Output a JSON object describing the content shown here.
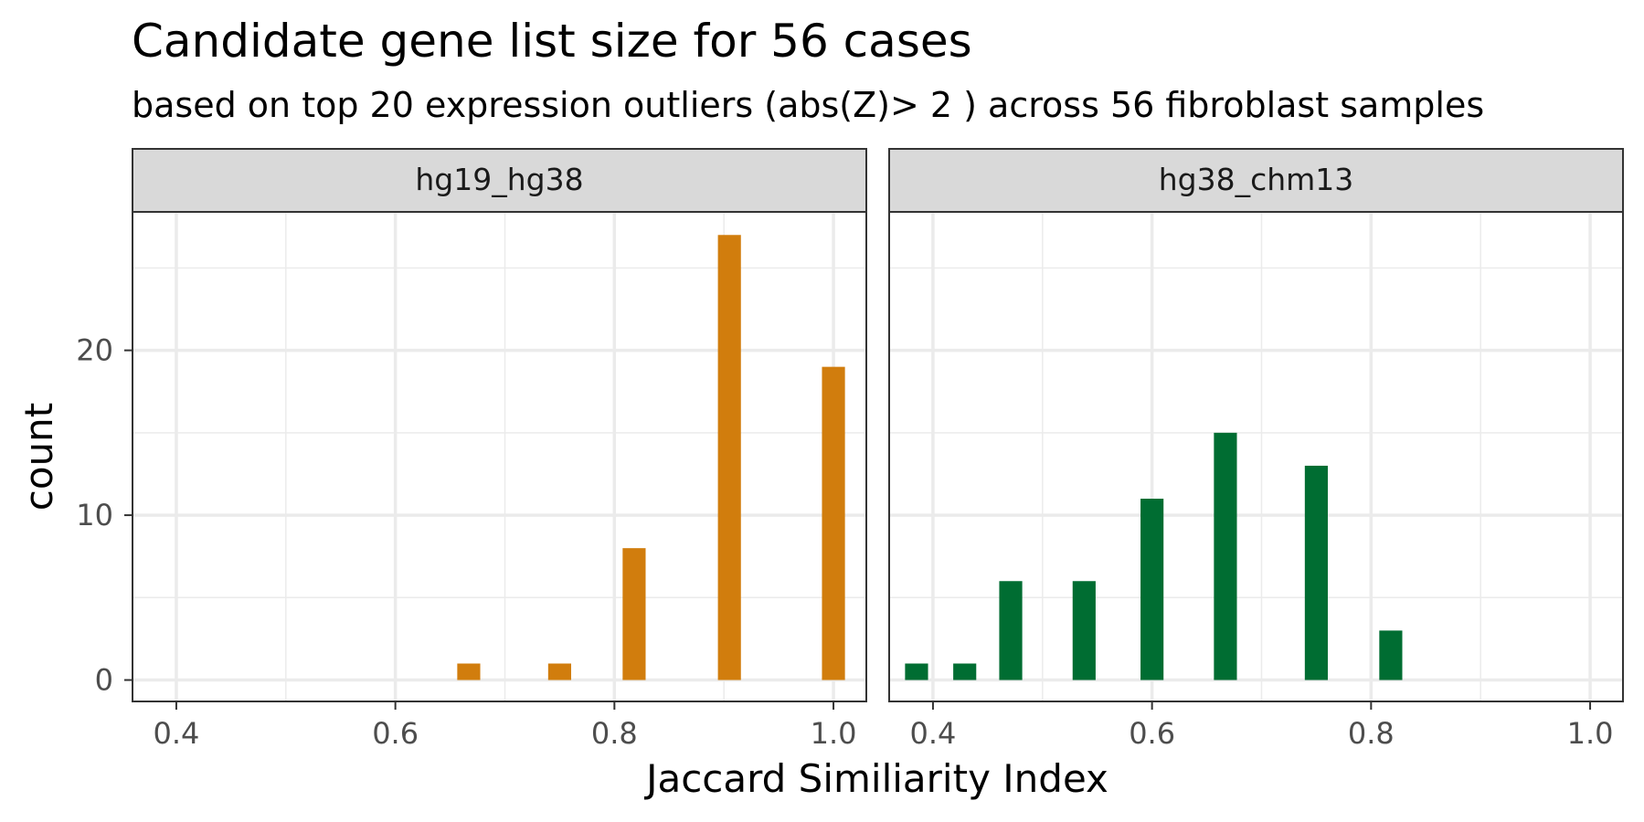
{
  "chart_data": {
    "type": "bar",
    "title": "Candidate gene list size for 56 cases",
    "subtitle": "based on top 20 expression outliers (abs(Z)> 2 ) across 56 fibroblast samples",
    "xlabel": "Jaccard Similiarity Index",
    "ylabel": "count",
    "xlim": [
      0.36,
      1.03
    ],
    "ylim": [
      -1.3,
      28.4
    ],
    "x_ticks": [
      0.4,
      0.6,
      0.8,
      1.0
    ],
    "x_tick_labels": [
      "0.4",
      "0.6",
      "0.8",
      "1.0"
    ],
    "y_ticks": [
      0,
      10,
      20
    ],
    "y_tick_labels": [
      "0",
      "10",
      "20"
    ],
    "bar_width": 0.021,
    "grid": true,
    "legend": "none",
    "facets": [
      {
        "name": "hg19_hg38",
        "color": "#D17D0D",
        "x": [
          0.667,
          0.75,
          0.818,
          0.905,
          1.0
        ],
        "values": [
          1,
          1,
          8,
          27,
          19
        ]
      },
      {
        "name": "hg38_chm13",
        "color": "#006D32",
        "x": [
          0.385,
          0.429,
          0.471,
          0.538,
          0.6,
          0.667,
          0.75,
          0.818
        ],
        "values": [
          1,
          1,
          6,
          6,
          11,
          15,
          13,
          3
        ]
      }
    ]
  }
}
